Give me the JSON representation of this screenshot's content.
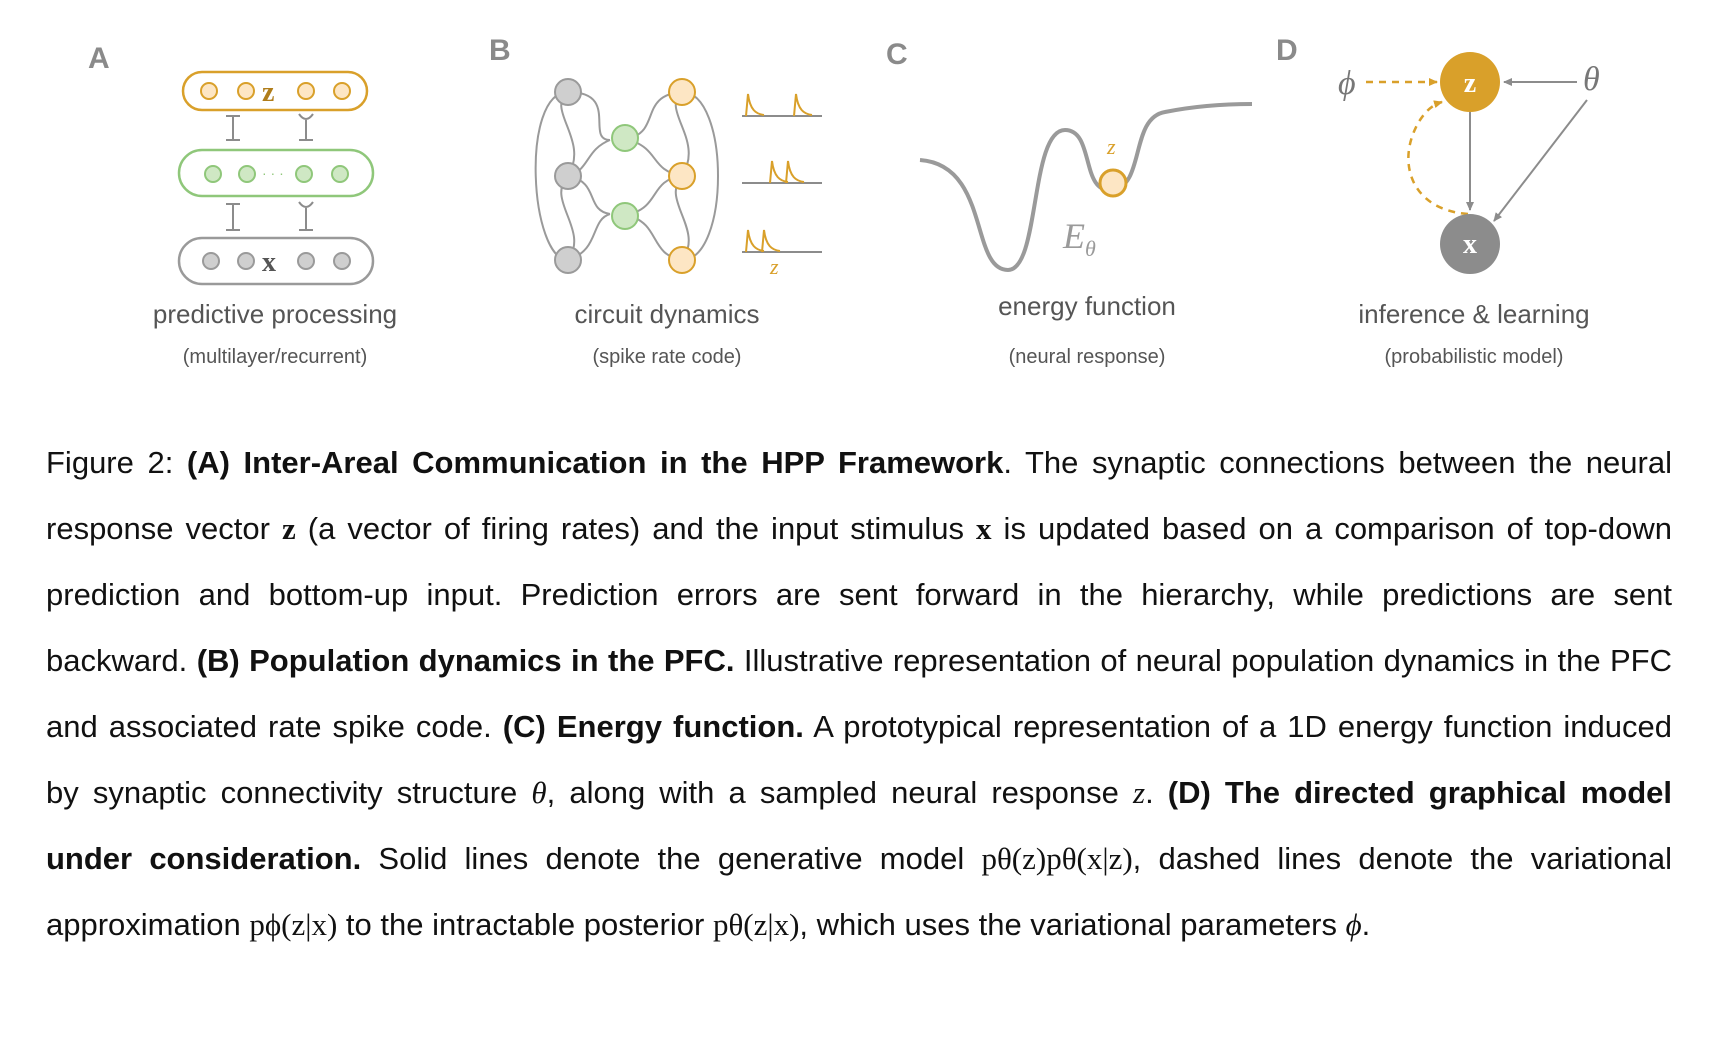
{
  "panels": {
    "A": {
      "letter": "A",
      "title": "predictive processing",
      "subtitle": "(multilayer/recurrent)",
      "top_label": "z",
      "bottom_label": "x",
      "dots": "· · ·"
    },
    "B": {
      "letter": "B",
      "title": "circuit dynamics",
      "subtitle": "(spike rate code)",
      "z_label": "z"
    },
    "C": {
      "letter": "C",
      "title": "energy function",
      "subtitle": "(neural response)",
      "z_label": "z",
      "energy_label": "E",
      "energy_sub": "θ"
    },
    "D": {
      "letter": "D",
      "title": "inference & learning",
      "subtitle": "(probabilistic model)",
      "node_z": "z",
      "node_x": "x",
      "phi": "ϕ",
      "theta": "θ"
    }
  },
  "caption": {
    "fig_label": "Figure 2: ",
    "A_head": "(A) Inter-Areal Communication in the HPP Framework",
    "A_t1": ". The synaptic connections between the neural response vector ",
    "z": "z",
    "A_t2": " (a vector of firing rates) and the input stimulus ",
    "x": "x",
    "A_t3": " is updated based on a comparison of top-down prediction and bottom-up input. Prediction errors are sent forward in the hierarchy, while predictions are sent backward. ",
    "B_head": "(B) Population dynamics in the PFC.",
    "B_t": " Illustrative representation of neural population dynamics in the PFC and associated rate spike code. ",
    "C_head": "(C) Energy function.",
    "C_t1": " A prototypical representation of a 1D energy function induced by synaptic connectivity structure ",
    "theta": "θ",
    "C_t2": ", along with a sampled neural response ",
    "z_it": "z",
    "C_t3": ". ",
    "D_head": "(D) The directed graphical model under consideration.",
    "D_t1": " Solid lines denote the generative model ",
    "gen_model": "pθ(z)pθ(x|z)",
    "D_t2": ", dashed lines denote the variational approximation ",
    "var_approx": "pϕ(z|x)",
    "D_t3": " to the intractable posterior ",
    "posterior": "pθ(z|x)",
    "D_t4": ", which uses the variational parameters ",
    "phi": "ϕ",
    "D_t5": "."
  },
  "colors": {
    "gold": "#d9a02a",
    "gold_fill": "#fde6c4",
    "green": "#8fc77a",
    "green_fill": "#cfe8c4",
    "gray": "#9a9a9a",
    "gray_fill": "#cfcfcf",
    "node_gold": "#d9a02a",
    "node_gray": "#8c8c8c"
  }
}
